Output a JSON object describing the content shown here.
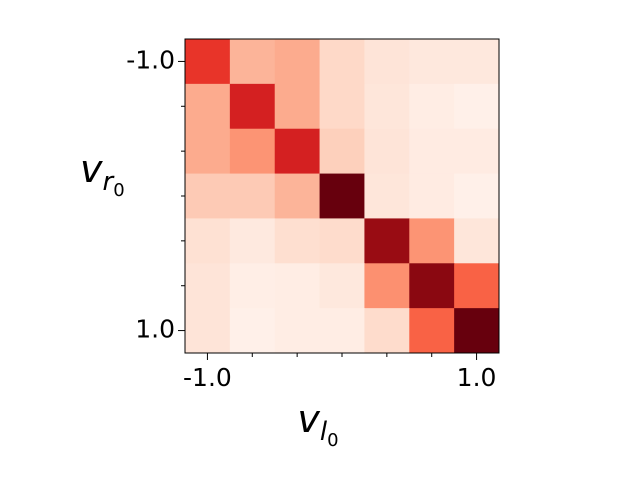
{
  "chart_data": {
    "type": "heatmap",
    "xlabel": [
      "v",
      "l",
      "0"
    ],
    "ylabel": [
      "v",
      "r",
      "0"
    ],
    "x": [
      -1,
      -0.6667,
      -0.3333,
      0,
      0.3333,
      0.6667,
      1
    ],
    "y": [
      -1,
      -0.6667,
      -0.3333,
      0,
      0.3333,
      0.6667,
      1
    ],
    "z": [
      [
        0.65,
        0.27,
        0.3,
        0.15,
        0.1,
        0.08,
        0.08
      ],
      [
        0.3,
        0.72,
        0.3,
        0.15,
        0.09,
        0.05,
        0.03
      ],
      [
        0.3,
        0.37,
        0.72,
        0.18,
        0.1,
        0.06,
        0.06
      ],
      [
        0.2,
        0.2,
        0.27,
        1.0,
        0.09,
        0.06,
        0.03
      ],
      [
        0.12,
        0.07,
        0.13,
        0.14,
        0.9,
        0.37,
        0.09
      ],
      [
        0.1,
        0.04,
        0.05,
        0.08,
        0.38,
        0.93,
        0.52
      ],
      [
        0.1,
        0.03,
        0.05,
        0.05,
        0.14,
        0.52,
        1.0
      ]
    ],
    "colormap": "Reds",
    "vlim": [
      0,
      1
    ],
    "xlim": [
      -1.1667,
      1.1667
    ],
    "ylim": [
      -1.1667,
      1.1667
    ],
    "y_inverted": true,
    "xticks": [
      {
        "value": -1,
        "label": "-1.0"
      },
      {
        "value": 1,
        "label": "1.0"
      }
    ],
    "yticks": [
      {
        "value": -1,
        "label": "-1.0"
      },
      {
        "value": 1,
        "label": "1.0"
      }
    ],
    "xminorticks": [
      -0.6667,
      -0.3333,
      0,
      0.3333,
      0.6667
    ],
    "yminorticks": [
      -0.6667,
      -0.3333,
      0,
      0.3333,
      0.6667
    ]
  }
}
